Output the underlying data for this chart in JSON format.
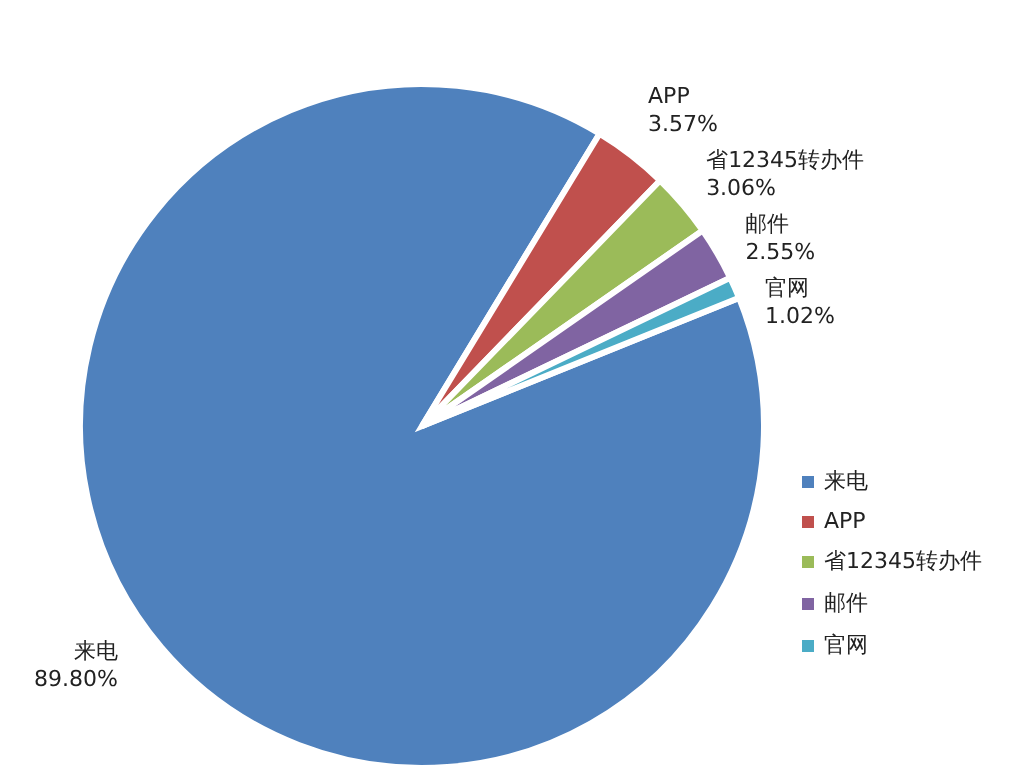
{
  "chart_data": {
    "type": "pie",
    "categories": [
      "来电",
      "APP",
      "省12345转办件",
      "邮件",
      "官网"
    ],
    "values": [
      89.8,
      3.57,
      3.06,
      2.55,
      1.02
    ],
    "value_labels": [
      "89.80%",
      "3.57%",
      "3.06%",
      "2.55%",
      "1.02%"
    ],
    "colors": [
      "#4f81bd",
      "#c0504d",
      "#9bbb59",
      "#8064a2",
      "#4bacc6"
    ],
    "legend": "right"
  }
}
